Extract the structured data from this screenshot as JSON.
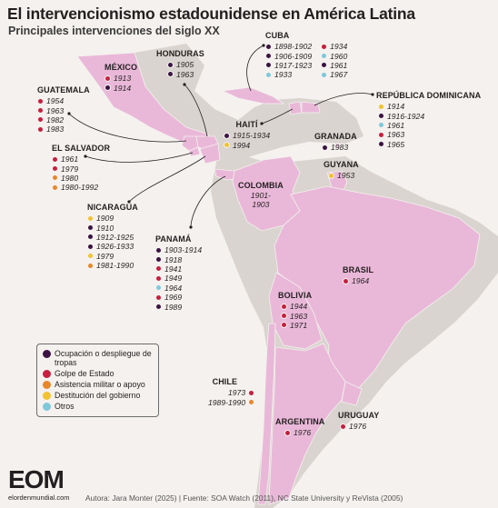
{
  "title": "El intervencionismo estadounidense en América Latina",
  "subtitle": "Principales intervenciones del siglo XX",
  "colors": {
    "ocupacion": "#3b1342",
    "golpe": "#c61f3f",
    "asistencia": "#e8862b",
    "destitucion": "#f2c230",
    "otros": "#7fc8dc",
    "highlight": "#e9b8d8",
    "land": "#d9d4cf",
    "sea": "#f4f1ee"
  },
  "legend": [
    {
      "type": "ocupacion",
      "label": "Ocupación o despliegue de tropas"
    },
    {
      "type": "golpe",
      "label": "Golpe de Estado"
    },
    {
      "type": "asistencia",
      "label": "Asistencia militar o apoyo"
    },
    {
      "type": "destitucion",
      "label": "Destitución del gobierno"
    },
    {
      "type": "otros",
      "label": "Otros"
    }
  ],
  "countries": {
    "mexico": {
      "name": "México",
      "events": [
        {
          "year": "1913",
          "type": "golpe"
        },
        {
          "year": "1914",
          "type": "ocupacion"
        }
      ]
    },
    "honduras": {
      "name": "Honduras",
      "events": [
        {
          "year": "1905",
          "type": "ocupacion"
        },
        {
          "year": "1963",
          "type": "ocupacion"
        }
      ]
    },
    "cuba": {
      "name": "Cuba",
      "col1": [
        {
          "year": "1898-1902",
          "type": "ocupacion"
        },
        {
          "year": "1906-1909",
          "type": "ocupacion"
        },
        {
          "year": "1917-1923",
          "type": "ocupacion"
        },
        {
          "year": "1933",
          "type": "otros"
        }
      ],
      "col2": [
        {
          "year": "1934",
          "type": "golpe"
        },
        {
          "year": "1960",
          "type": "otros"
        },
        {
          "year": "1961",
          "type": "ocupacion"
        },
        {
          "year": "1967",
          "type": "otros"
        }
      ]
    },
    "guatemala": {
      "name": "Guatemala",
      "events": [
        {
          "year": "1954",
          "type": "golpe"
        },
        {
          "year": "1963",
          "type": "golpe"
        },
        {
          "year": "1982",
          "type": "golpe"
        },
        {
          "year": "1983",
          "type": "golpe"
        }
      ]
    },
    "republica_dominicana": {
      "name": "República Dominicana",
      "events": [
        {
          "year": "1914",
          "type": "destitucion"
        },
        {
          "year": "1916-1924",
          "type": "ocupacion"
        },
        {
          "year": "1961",
          "type": "otros"
        },
        {
          "year": "1963",
          "type": "golpe"
        },
        {
          "year": "1965",
          "type": "ocupacion"
        }
      ]
    },
    "haiti": {
      "name": "Haití",
      "events": [
        {
          "year": "1915-1934",
          "type": "ocupacion"
        },
        {
          "year": "1994",
          "type": "destitucion"
        }
      ]
    },
    "el_salvador": {
      "name": "El Salvador",
      "events": [
        {
          "year": "1961",
          "type": "golpe"
        },
        {
          "year": "1979",
          "type": "golpe"
        },
        {
          "year": "1980",
          "type": "asistencia"
        },
        {
          "year": "1980-1992",
          "type": "asistencia"
        }
      ]
    },
    "granada": {
      "name": "Granada",
      "events": [
        {
          "year": "1983",
          "type": "ocupacion"
        }
      ]
    },
    "guyana": {
      "name": "Guyana",
      "events": [
        {
          "year": "1953",
          "type": "destitucion"
        }
      ]
    },
    "colombia": {
      "name": "Colombia",
      "years": "1901-\n1903"
    },
    "nicaragua": {
      "name": "Nicaragua",
      "events": [
        {
          "year": "1909",
          "type": "destitucion"
        },
        {
          "year": "1910",
          "type": "ocupacion"
        },
        {
          "year": "1912-1925",
          "type": "ocupacion"
        },
        {
          "year": "1926-1933",
          "type": "ocupacion"
        },
        {
          "year": "1979",
          "type": "destitucion"
        },
        {
          "year": "1981-1990",
          "type": "asistencia"
        }
      ]
    },
    "panama": {
      "name": "Panamá",
      "events": [
        {
          "year": "1903-1914",
          "type": "ocupacion"
        },
        {
          "year": "1918",
          "type": "ocupacion"
        },
        {
          "year": "1941",
          "type": "golpe"
        },
        {
          "year": "1949",
          "type": "golpe"
        },
        {
          "year": "1964",
          "type": "otros"
        },
        {
          "year": "1969",
          "type": "golpe"
        },
        {
          "year": "1989",
          "type": "ocupacion"
        }
      ]
    },
    "brasil": {
      "name": "Brasil",
      "events": [
        {
          "year": "1964",
          "type": "golpe"
        }
      ]
    },
    "bolivia": {
      "name": "Bolivia",
      "events": [
        {
          "year": "1944",
          "type": "golpe"
        },
        {
          "year": "1963",
          "type": "golpe"
        },
        {
          "year": "1971",
          "type": "golpe"
        }
      ]
    },
    "chile": {
      "name": "Chile",
      "events": [
        {
          "year": "1973",
          "type": "golpe"
        },
        {
          "year": "1989-1990",
          "type": "asistencia"
        }
      ]
    },
    "uruguay": {
      "name": "Uruguay",
      "events": [
        {
          "year": "1976",
          "type": "golpe"
        }
      ]
    },
    "argentina": {
      "name": "Argentina",
      "events": [
        {
          "year": "1976",
          "type": "golpe"
        }
      ]
    }
  },
  "logo": {
    "mark": "EOM",
    "domain": "elordenmundial.com"
  },
  "source": "Autora: Jara Monter (2025) | Fuente: SOA Watch (2011), NC State University y ReVista (2005)"
}
